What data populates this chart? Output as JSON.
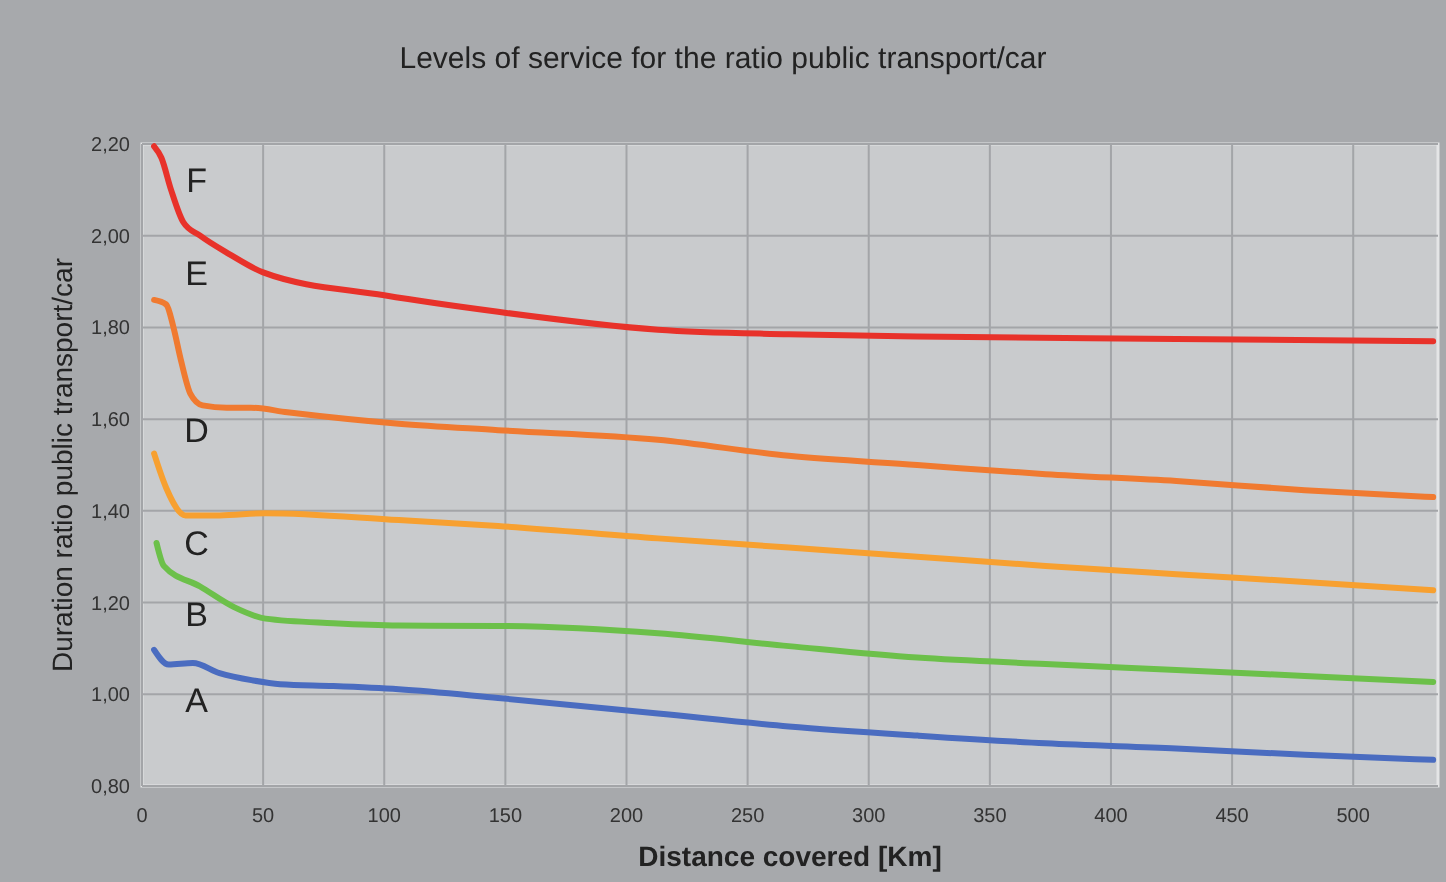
{
  "chart_data": {
    "type": "line",
    "title": "Levels of service for the ratio public transport/car",
    "xlabel": "Distance covered [Km]",
    "ylabel": "Duration ratio public transport/car",
    "xlim": [
      0,
      535
    ],
    "xticks": [
      0,
      50,
      100,
      150,
      200,
      250,
      300,
      350,
      400,
      450,
      500
    ],
    "ylim": [
      0.8,
      2.2
    ],
    "yticks": [
      {
        "value": 0.8,
        "label": "0,80"
      },
      {
        "value": 1.0,
        "label": "1,00"
      },
      {
        "value": 1.2,
        "label": "1,20"
      },
      {
        "value": 1.4,
        "label": "1,40"
      },
      {
        "value": 1.6,
        "label": "1,60"
      },
      {
        "value": 1.8,
        "label": "1,80"
      },
      {
        "value": 2.0,
        "label": "2,00"
      },
      {
        "value": 2.2,
        "label": "2,20"
      }
    ],
    "grid": true,
    "marker": "none",
    "line_style": "solid",
    "series": [
      {
        "color": "#e8322a",
        "x": [
          5,
          8,
          12,
          17,
          24,
          36,
          50,
          100,
          147,
          213,
          267,
          320,
          427,
          533
        ],
        "values": [
          2.195,
          2.17,
          2.1,
          2.03,
          2.0,
          1.96,
          1.92,
          1.87,
          1.834,
          1.795,
          1.785,
          1.78,
          1.775,
          1.77
        ]
      },
      {
        "color": "#f07a30",
        "x": [
          5,
          10,
          13,
          16,
          20,
          25,
          35,
          45,
          60,
          106,
          147,
          213,
          267,
          320,
          373,
          427,
          480,
          533
        ],
        "values": [
          1.86,
          1.85,
          1.8,
          1.73,
          1.655,
          1.63,
          1.625,
          1.625,
          1.615,
          1.59,
          1.576,
          1.555,
          1.52,
          1.5,
          1.48,
          1.465,
          1.445,
          1.43
        ]
      },
      {
        "color": "#f7a030",
        "x": [
          5,
          10,
          18,
          32,
          51,
          106,
          147,
          213,
          267,
          320,
          373,
          427,
          480,
          533
        ],
        "values": [
          1.525,
          1.45,
          1.39,
          1.39,
          1.395,
          1.38,
          1.367,
          1.34,
          1.32,
          1.3,
          1.28,
          1.262,
          1.245,
          1.227
        ]
      },
      {
        "color": "#6cc04a",
        "x": [
          6,
          9,
          24,
          38,
          51,
          79,
          106,
          147,
          213,
          267,
          320,
          373,
          427,
          480,
          533
        ],
        "values": [
          1.33,
          1.28,
          1.235,
          1.19,
          1.165,
          1.155,
          1.15,
          1.149,
          1.133,
          1.105,
          1.08,
          1.066,
          1.053,
          1.04,
          1.027
        ]
      },
      {
        "color": "#4a6cc0",
        "x": [
          5,
          11,
          21,
          32,
          46,
          57,
          79,
          106,
          147,
          213,
          267,
          320,
          373,
          427,
          480,
          533
        ],
        "values": [
          1.097,
          1.065,
          1.068,
          1.046,
          1.03,
          1.022,
          1.018,
          1.011,
          0.992,
          0.958,
          0.93,
          0.91,
          0.893,
          0.882,
          0.868,
          0.857
        ]
      }
    ],
    "annotations": [
      "F",
      "E",
      "D",
      "C",
      "B",
      "A"
    ]
  }
}
